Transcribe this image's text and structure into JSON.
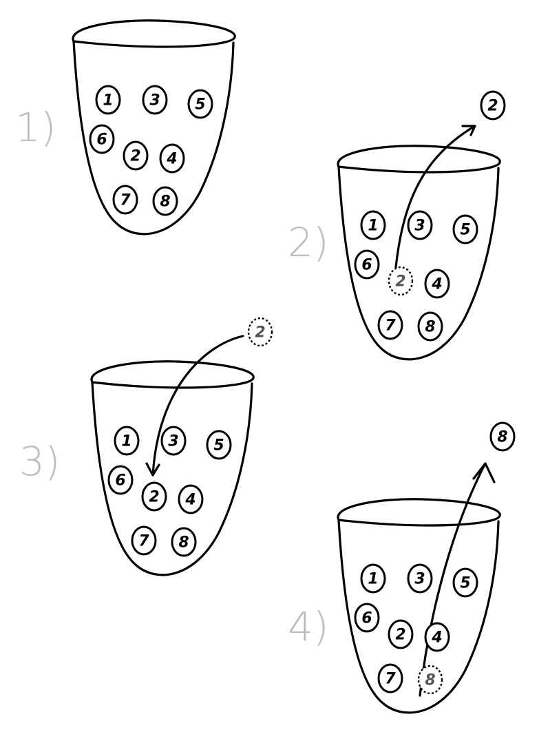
{
  "panels": [
    {
      "label": "1)",
      "balls": [
        {
          "n": "1"
        },
        {
          "n": "3"
        },
        {
          "n": "5"
        },
        {
          "n": "6"
        },
        {
          "n": "2"
        },
        {
          "n": "4"
        },
        {
          "n": "7"
        },
        {
          "n": "8"
        }
      ],
      "arrow": null
    },
    {
      "label": "2)",
      "balls": [
        {
          "n": "1"
        },
        {
          "n": "3"
        },
        {
          "n": "5"
        },
        {
          "n": "6"
        },
        {
          "n": "2",
          "ghost": true
        },
        {
          "n": "4"
        },
        {
          "n": "7"
        },
        {
          "n": "8"
        },
        {
          "n": "2",
          "outside": true
        }
      ],
      "arrow": "out"
    },
    {
      "label": "3)",
      "balls": [
        {
          "n": "1"
        },
        {
          "n": "3"
        },
        {
          "n": "5"
        },
        {
          "n": "6"
        },
        {
          "n": "2"
        },
        {
          "n": "4"
        },
        {
          "n": "7"
        },
        {
          "n": "8"
        },
        {
          "n": "2",
          "outside": true,
          "ghost": true
        }
      ],
      "arrow": "in"
    },
    {
      "label": "4)",
      "balls": [
        {
          "n": "1"
        },
        {
          "n": "3"
        },
        {
          "n": "5"
        },
        {
          "n": "6"
        },
        {
          "n": "2"
        },
        {
          "n": "4"
        },
        {
          "n": "7"
        },
        {
          "n": "8",
          "ghost": true
        },
        {
          "n": "8",
          "outside": true
        }
      ],
      "arrow": "out"
    }
  ]
}
